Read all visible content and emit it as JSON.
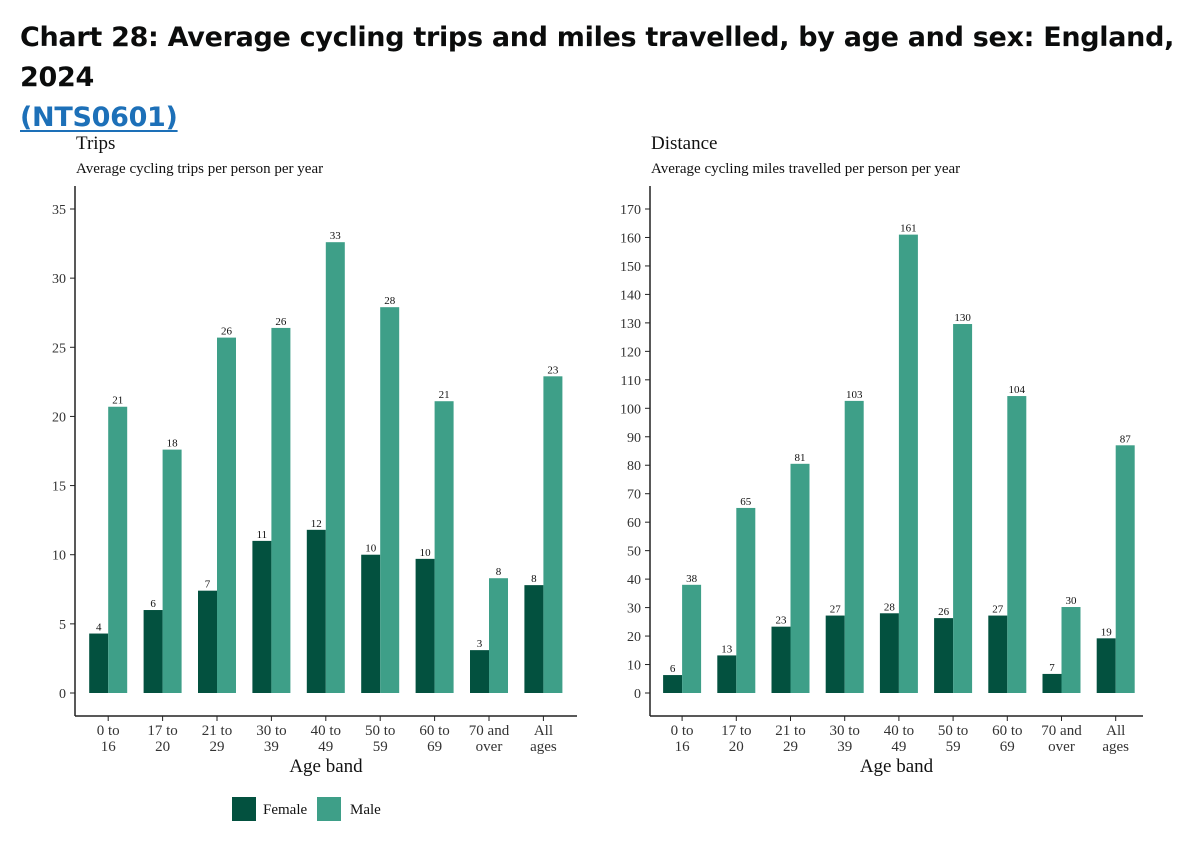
{
  "heading": {
    "title": "Chart 28: Average cycling trips and miles travelled, by age and sex: England, 2024",
    "link_text": "(NTS0601)"
  },
  "colors": {
    "female": "#03513f",
    "male": "#3e9f88"
  },
  "legend": {
    "female": "Female",
    "male": "Male"
  },
  "chart_data": [
    {
      "type": "bar",
      "title": "Trips",
      "subtitle": "Average cycling trips per person per year",
      "xlabel": "Age band",
      "ylabel": "",
      "categories": [
        [
          "0 to",
          "16"
        ],
        [
          "17 to",
          "20"
        ],
        [
          "21 to",
          "29"
        ],
        [
          "30 to",
          "39"
        ],
        [
          "40 to",
          "49"
        ],
        [
          "50 to",
          "59"
        ],
        [
          "60 to",
          "69"
        ],
        [
          "70 and",
          "over"
        ],
        [
          "All",
          "ages"
        ]
      ],
      "ylim": [
        0,
        35
      ],
      "yticks": [
        0,
        5,
        10,
        15,
        20,
        25,
        30,
        35
      ],
      "series": [
        {
          "name": "Female",
          "values": [
            4.3,
            6.0,
            7.4,
            11.0,
            11.8,
            10.0,
            9.7,
            3.1,
            7.8
          ],
          "labels": [
            "4",
            "6",
            "7",
            "11",
            "12",
            "10",
            "10",
            "3",
            "8"
          ]
        },
        {
          "name": "Male",
          "values": [
            20.7,
            17.6,
            25.7,
            26.4,
            32.6,
            27.9,
            21.1,
            8.3,
            22.9
          ],
          "labels": [
            "21",
            "18",
            "26",
            "26",
            "33",
            "28",
            "21",
            "8",
            "23"
          ]
        }
      ]
    },
    {
      "type": "bar",
      "title": "Distance",
      "subtitle": "Average cycling miles travelled per person per year",
      "xlabel": "Age band",
      "ylabel": "",
      "categories": [
        [
          "0 to",
          "16"
        ],
        [
          "17 to",
          "20"
        ],
        [
          "21 to",
          "29"
        ],
        [
          "30 to",
          "39"
        ],
        [
          "40 to",
          "49"
        ],
        [
          "50 to",
          "59"
        ],
        [
          "60 to",
          "69"
        ],
        [
          "70 and",
          "over"
        ],
        [
          "All",
          "ages"
        ]
      ],
      "ylim": [
        0,
        170
      ],
      "yticks": [
        0,
        10,
        20,
        30,
        40,
        50,
        60,
        70,
        80,
        90,
        100,
        110,
        120,
        130,
        140,
        150,
        160,
        170
      ],
      "series": [
        {
          "name": "Female",
          "values": [
            6.3,
            13.2,
            23.3,
            27.2,
            28.0,
            26.3,
            27.2,
            6.7,
            19.2
          ],
          "labels": [
            "6",
            "13",
            "23",
            "27",
            "28",
            "26",
            "27",
            "7",
            "19"
          ]
        },
        {
          "name": "Male",
          "values": [
            38.0,
            65.0,
            80.5,
            102.6,
            161.0,
            129.6,
            104.3,
            30.2,
            87.0
          ],
          "labels": [
            "38",
            "65",
            "81",
            "103",
            "161",
            "130",
            "104",
            "30",
            "87"
          ]
        }
      ]
    }
  ]
}
